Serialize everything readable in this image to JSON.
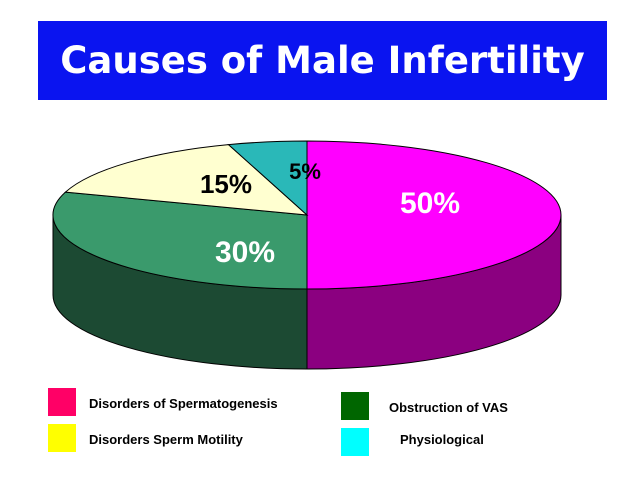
{
  "chart_data": {
    "type": "pie",
    "title": "Causes of Male Infertility",
    "slices": [
      {
        "name": "Disorders of Spermatogenesis",
        "value": 50,
        "label": "50%",
        "color": "#ff00ff",
        "side_color": "#8b0080"
      },
      {
        "name": "Obstruction of VAS",
        "value": 30,
        "label": "30%",
        "color": "#3a9a6c",
        "side_color": "#1c4a33"
      },
      {
        "name": "Disorders Sperm Motility",
        "value": 15,
        "label": "15%",
        "color": "#ffffd0",
        "side_color": "#9a9a70"
      },
      {
        "name": "Physiological",
        "value": 5,
        "label": "5%",
        "color": "#2ab8b8",
        "side_color": "#176a6a"
      }
    ],
    "legend": [
      {
        "label": "Disorders of Spermatogenesis",
        "color": "#ff0066"
      },
      {
        "label": "Obstruction of VAS",
        "color": "#006600"
      },
      {
        "label": "Disorders Sperm Motility",
        "color": "#ffff00"
      },
      {
        "label": "Physiological",
        "color": "#00ffff"
      }
    ],
    "style": "3d"
  }
}
